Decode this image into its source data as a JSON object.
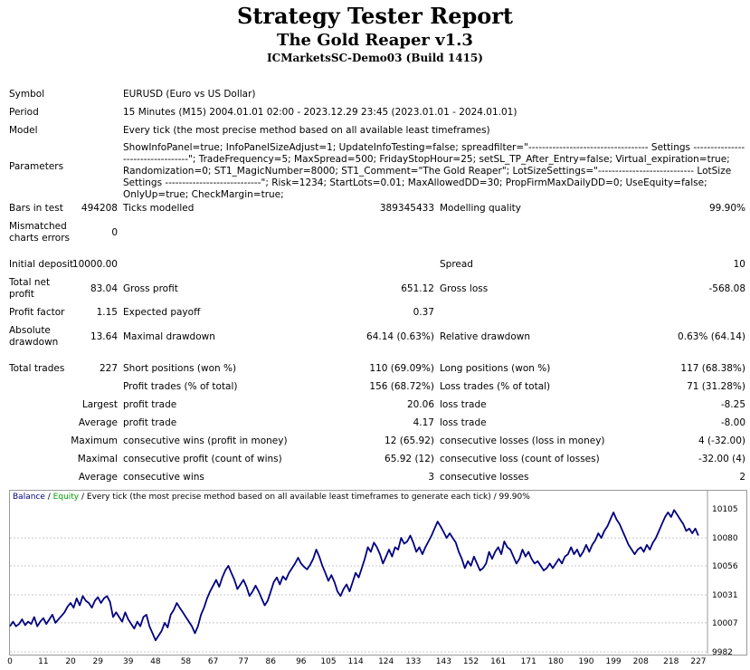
{
  "title": "Strategy Tester Report",
  "subtitle": "The Gold Reaper v1.3",
  "server": "ICMarketsSC-Demo03 (Build 1415)",
  "info": {
    "symbol_label": "Symbol",
    "symbol": "EURUSD (Euro vs US Dollar)",
    "period_label": "Period",
    "period": "15 Minutes (M15) 2004.01.01 02:00 - 2023.12.29 23:45 (2023.01.01 - 2024.01.01)",
    "model_label": "Model",
    "model": "Every tick (the most precise method based on all available least timeframes)",
    "parameters_label": "Parameters",
    "parameters": "ShowInfoPanel=true; InfoPanelSizeAdjust=1; UpdateInfoTesting=false; spreadfilter=\"----------------------------------- Settings ----------------------------------\"; TradeFrequency=5; MaxSpread=500; FridayStopHour=25; setSL_TP_After_Entry=false; Virtual_expiration=true; Randomization=0; ST1_MagicNumber=8000; ST1_Comment=\"The Gold Reaper\"; LotSizeSettings=\"---------------------------- LotSize Settings ----------------------------\"; Risk=1234; StartLots=0.01; MaxAllowedDD=30; PropFirmMaxDailyDD=0; UseEquity=false; OnlyUp=true; CheckMargin=true;"
  },
  "stats": {
    "bars_label": "Bars in test",
    "bars": "494208",
    "ticks_label": "Ticks modelled",
    "ticks": "389345433",
    "quality_label": "Modelling quality",
    "quality": "99.90%",
    "mismatch_label_1": "Mismatched",
    "mismatch_label_2": "charts errors",
    "mismatch": "0",
    "deposit_label": "Initial deposit",
    "deposit": "10000.00",
    "spread_label": "Spread",
    "spread": "10",
    "net_label_1": "Total net",
    "net_label_2": "profit",
    "net": "83.04",
    "gross_profit_label": "Gross profit",
    "gross_profit": "651.12",
    "gross_loss_label": "Gross loss",
    "gross_loss": "-568.08",
    "pf_label": "Profit factor",
    "pf": "1.15",
    "payoff_label": "Expected payoff",
    "payoff": "0.37",
    "abs_dd_label_1": "Absolute",
    "abs_dd_label_2": "drawdown",
    "abs_dd": "13.64",
    "max_dd_label": "Maximal drawdown",
    "max_dd": "64.14 (0.63%)",
    "rel_dd_label": "Relative drawdown",
    "rel_dd": "0.63% (64.14)",
    "trades_label": "Total trades",
    "trades": "227",
    "short_label": "Short positions (won %)",
    "short": "110 (69.09%)",
    "long_label": "Long positions (won %)",
    "long": "117 (68.38%)",
    "profit_trades_label": "Profit trades (% of total)",
    "profit_trades": "156 (68.72%)",
    "loss_trades_label": "Loss trades (% of total)",
    "loss_trades": "71 (31.28%)",
    "largest_label": "Largest",
    "largest_profit_label": "profit trade",
    "largest_profit": "20.06",
    "largest_loss_label": "loss trade",
    "largest_loss": "-8.25",
    "average_label": "Average",
    "average_profit_label": "profit trade",
    "average_profit": "4.17",
    "average_loss_label": "loss trade",
    "average_loss": "-8.00",
    "maximum_label": "Maximum",
    "max_cw_label": "consecutive wins (profit in money)",
    "max_cw": "12 (65.92)",
    "max_cl_label": "consecutive losses (loss in money)",
    "max_cl": "4 (-32.00)",
    "maximal_label": "Maximal",
    "maximal_cp_label": "consecutive profit (count of wins)",
    "maximal_cp": "65.92 (12)",
    "maximal_cl_label": "consecutive loss (count of losses)",
    "maximal_cl": "-32.00 (4)",
    "average2_label": "Average",
    "avg_cw_label": "consecutive wins",
    "avg_cw": "3",
    "avg_cl_label": "consecutive losses",
    "avg_cl": "2"
  },
  "chart_legend": {
    "balance": "Balance",
    "sep1": " / ",
    "equity": "Equity",
    "rest": " / Every tick (the most precise method based on all available least timeframes to generate each tick) / 99.90%"
  },
  "chart_data": {
    "type": "line",
    "y_ticks": [
      "10105",
      "10080",
      "10056",
      "10031",
      "10007",
      "9982"
    ],
    "ylim": [
      9982,
      10105
    ],
    "x_ticks": [
      "0",
      "11",
      "20",
      "29",
      "39",
      "48",
      "58",
      "67",
      "77",
      "86",
      "96",
      "105",
      "114",
      "124",
      "133",
      "143",
      "152",
      "161",
      "171",
      "180",
      "190",
      "199",
      "208",
      "218",
      "227"
    ],
    "xlim": [
      0,
      230
    ],
    "colors": {
      "balance": "#000080"
    },
    "series": [
      {
        "name": "Balance",
        "points": [
          [
            0,
            10004
          ],
          [
            1,
            10008
          ],
          [
            2,
            10004
          ],
          [
            3,
            10006
          ],
          [
            4,
            10010
          ],
          [
            5,
            10005
          ],
          [
            6,
            10008
          ],
          [
            7,
            10006
          ],
          [
            8,
            10012
          ],
          [
            9,
            10004
          ],
          [
            10,
            10008
          ],
          [
            11,
            10011
          ],
          [
            12,
            10006
          ],
          [
            13,
            10010
          ],
          [
            14,
            10014
          ],
          [
            15,
            10007
          ],
          [
            16,
            10010
          ],
          [
            17,
            10013
          ],
          [
            18,
            10016
          ],
          [
            19,
            10021
          ],
          [
            20,
            10024
          ],
          [
            21,
            10020
          ],
          [
            22,
            10028
          ],
          [
            23,
            10022
          ],
          [
            24,
            10030
          ],
          [
            25,
            10026
          ],
          [
            26,
            10024
          ],
          [
            27,
            10020
          ],
          [
            28,
            10026
          ],
          [
            29,
            10029
          ],
          [
            30,
            10024
          ],
          [
            31,
            10028
          ],
          [
            32,
            10030
          ],
          [
            33,
            10025
          ],
          [
            34,
            10012
          ],
          [
            35,
            10016
          ],
          [
            36,
            10012
          ],
          [
            37,
            10008
          ],
          [
            38,
            10016
          ],
          [
            39,
            10010
          ],
          [
            40,
            10006
          ],
          [
            41,
            10002
          ],
          [
            42,
            10008
          ],
          [
            43,
            10004
          ],
          [
            44,
            10012
          ],
          [
            45,
            10014
          ],
          [
            46,
            10004
          ],
          [
            47,
            9998
          ],
          [
            48,
            9992
          ],
          [
            49,
            9996
          ],
          [
            50,
            10000
          ],
          [
            51,
            10007
          ],
          [
            52,
            10003
          ],
          [
            53,
            10014
          ],
          [
            54,
            10018
          ],
          [
            55,
            10024
          ],
          [
            56,
            10020
          ],
          [
            57,
            10016
          ],
          [
            58,
            10012
          ],
          [
            59,
            10008
          ],
          [
            60,
            10004
          ],
          [
            61,
            9998
          ],
          [
            62,
            10004
          ],
          [
            63,
            10014
          ],
          [
            64,
            10020
          ],
          [
            65,
            10028
          ],
          [
            66,
            10034
          ],
          [
            67,
            10039
          ],
          [
            68,
            10044
          ],
          [
            69,
            10038
          ],
          [
            70,
            10046
          ],
          [
            71,
            10052
          ],
          [
            72,
            10056
          ],
          [
            73,
            10050
          ],
          [
            74,
            10044
          ],
          [
            75,
            10036
          ],
          [
            76,
            10040
          ],
          [
            77,
            10044
          ],
          [
            78,
            10038
          ],
          [
            79,
            10030
          ],
          [
            80,
            10034
          ],
          [
            81,
            10039
          ],
          [
            82,
            10034
          ],
          [
            83,
            10028
          ],
          [
            84,
            10022
          ],
          [
            85,
            10026
          ],
          [
            86,
            10034
          ],
          [
            87,
            10042
          ],
          [
            88,
            10046
          ],
          [
            89,
            10040
          ],
          [
            90,
            10047
          ],
          [
            91,
            10044
          ],
          [
            92,
            10050
          ],
          [
            93,
            10054
          ],
          [
            94,
            10058
          ],
          [
            95,
            10063
          ],
          [
            96,
            10058
          ],
          [
            97,
            10055
          ],
          [
            98,
            10053
          ],
          [
            99,
            10057
          ],
          [
            100,
            10062
          ],
          [
            101,
            10070
          ],
          [
            102,
            10064
          ],
          [
            103,
            10056
          ],
          [
            104,
            10050
          ],
          [
            105,
            10043
          ],
          [
            106,
            10048
          ],
          [
            107,
            10042
          ],
          [
            108,
            10034
          ],
          [
            109,
            10030
          ],
          [
            110,
            10036
          ],
          [
            111,
            10040
          ],
          [
            112,
            10034
          ],
          [
            113,
            10042
          ],
          [
            114,
            10050
          ],
          [
            115,
            10046
          ],
          [
            116,
            10054
          ],
          [
            117,
            10062
          ],
          [
            118,
            10072
          ],
          [
            119,
            10068
          ],
          [
            120,
            10076
          ],
          [
            121,
            10072
          ],
          [
            122,
            10066
          ],
          [
            123,
            10058
          ],
          [
            124,
            10064
          ],
          [
            125,
            10070
          ],
          [
            126,
            10064
          ],
          [
            127,
            10072
          ],
          [
            128,
            10070
          ],
          [
            129,
            10080
          ],
          [
            130,
            10075
          ],
          [
            131,
            10077
          ],
          [
            132,
            10082
          ],
          [
            133,
            10076
          ],
          [
            134,
            10068
          ],
          [
            135,
            10072
          ],
          [
            136,
            10066
          ],
          [
            137,
            10072
          ],
          [
            138,
            10077
          ],
          [
            139,
            10082
          ],
          [
            140,
            10088
          ],
          [
            141,
            10094
          ],
          [
            142,
            10090
          ],
          [
            143,
            10085
          ],
          [
            144,
            10080
          ],
          [
            145,
            10084
          ],
          [
            146,
            10080
          ],
          [
            147,
            10076
          ],
          [
            148,
            10068
          ],
          [
            149,
            10062
          ],
          [
            150,
            10054
          ],
          [
            151,
            10060
          ],
          [
            152,
            10056
          ],
          [
            153,
            10064
          ],
          [
            154,
            10058
          ],
          [
            155,
            10052
          ],
          [
            156,
            10054
          ],
          [
            157,
            10058
          ],
          [
            158,
            10068
          ],
          [
            159,
            10062
          ],
          [
            160,
            10068
          ],
          [
            161,
            10072
          ],
          [
            162,
            10066
          ],
          [
            163,
            10077
          ],
          [
            164,
            10072
          ],
          [
            165,
            10070
          ],
          [
            166,
            10064
          ],
          [
            167,
            10058
          ],
          [
            168,
            10062
          ],
          [
            169,
            10070
          ],
          [
            170,
            10064
          ],
          [
            171,
            10068
          ],
          [
            172,
            10062
          ],
          [
            173,
            10058
          ],
          [
            174,
            10060
          ],
          [
            175,
            10056
          ],
          [
            176,
            10052
          ],
          [
            177,
            10054
          ],
          [
            178,
            10058
          ],
          [
            179,
            10054
          ],
          [
            180,
            10058
          ],
          [
            181,
            10062
          ],
          [
            182,
            10058
          ],
          [
            183,
            10064
          ],
          [
            184,
            10066
          ],
          [
            185,
            10072
          ],
          [
            186,
            10066
          ],
          [
            187,
            10070
          ],
          [
            188,
            10064
          ],
          [
            189,
            10068
          ],
          [
            190,
            10074
          ],
          [
            191,
            10068
          ],
          [
            192,
            10074
          ],
          [
            193,
            10078
          ],
          [
            194,
            10084
          ],
          [
            195,
            10080
          ],
          [
            196,
            10086
          ],
          [
            197,
            10090
          ],
          [
            198,
            10096
          ],
          [
            199,
            10102
          ],
          [
            200,
            10096
          ],
          [
            201,
            10092
          ],
          [
            202,
            10086
          ],
          [
            203,
            10080
          ],
          [
            204,
            10074
          ],
          [
            205,
            10070
          ],
          [
            206,
            10066
          ],
          [
            207,
            10070
          ],
          [
            208,
            10072
          ],
          [
            209,
            10068
          ],
          [
            210,
            10074
          ],
          [
            211,
            10070
          ],
          [
            212,
            10076
          ],
          [
            213,
            10080
          ],
          [
            214,
            10086
          ],
          [
            215,
            10092
          ],
          [
            216,
            10098
          ],
          [
            217,
            10102
          ],
          [
            218,
            10098
          ],
          [
            219,
            10104
          ],
          [
            220,
            10100
          ],
          [
            221,
            10096
          ],
          [
            222,
            10092
          ],
          [
            223,
            10086
          ],
          [
            224,
            10088
          ],
          [
            225,
            10084
          ],
          [
            226,
            10088
          ],
          [
            227,
            10082
          ]
        ]
      }
    ]
  }
}
